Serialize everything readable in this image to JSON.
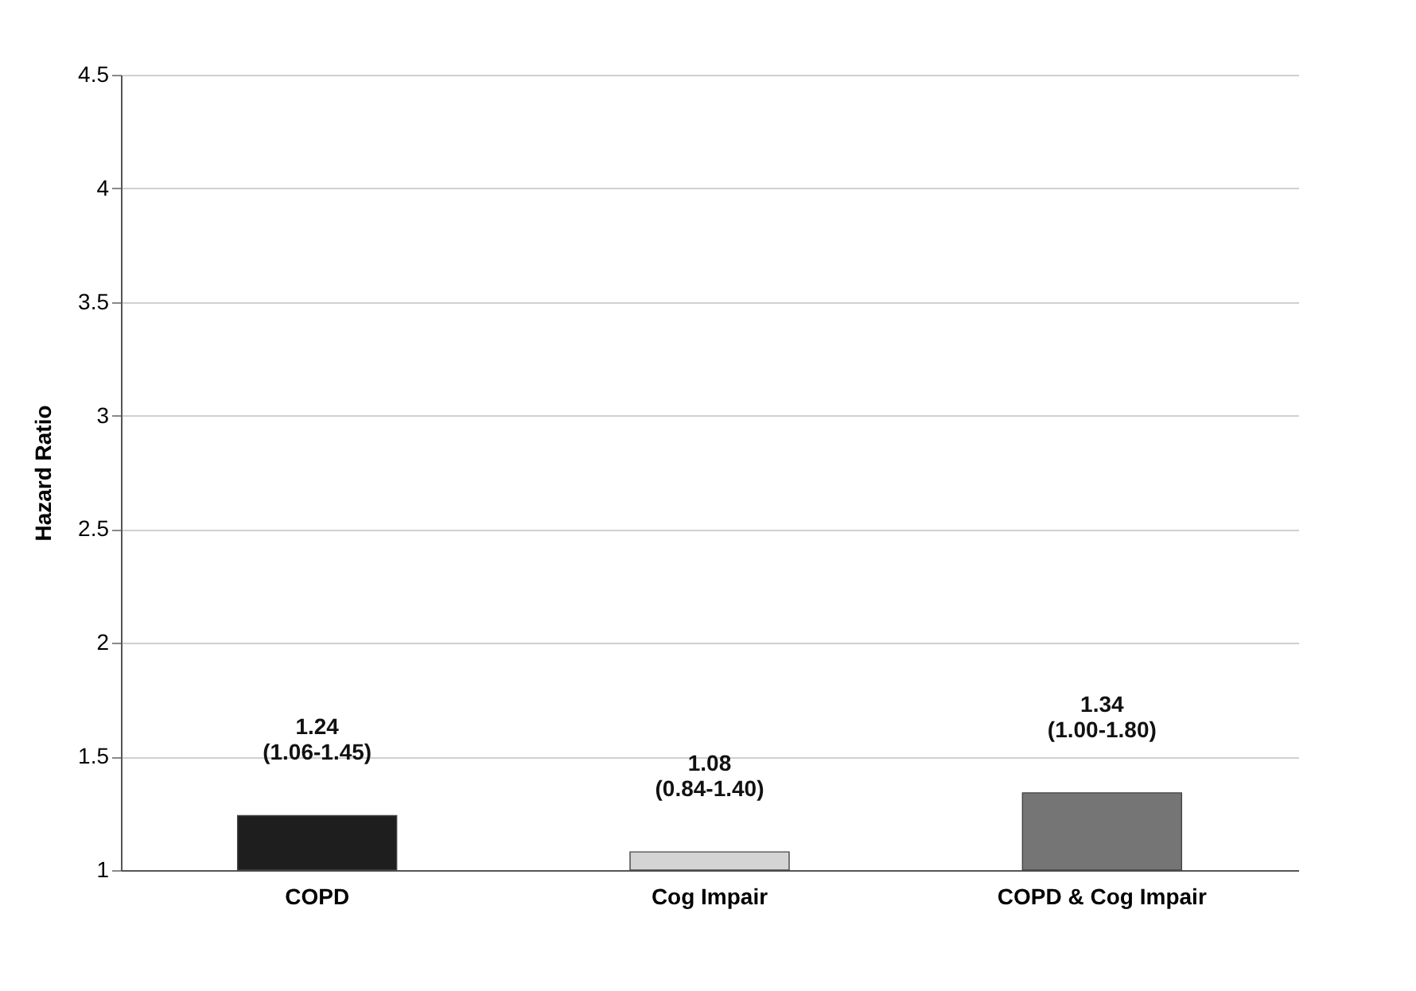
{
  "chart_data": {
    "type": "bar",
    "ylabel": "Hazard Ratio",
    "categories": [
      "COPD",
      "Cog Impair",
      "COPD & Cog Impair"
    ],
    "values": [
      1.24,
      1.08,
      1.34
    ],
    "colors": [
      "#1e1e1e",
      "#d4d4d4",
      "#757575"
    ],
    "value_labels": [
      "1.24\n(1.06-1.45)",
      "1.08\n(0.84-1.40)",
      "1.34\n(1.00-1.80)"
    ],
    "ylim": [
      1,
      4.5
    ],
    "yticks": [
      1,
      1.5,
      2,
      2.5,
      3,
      3.5,
      4,
      4.5
    ],
    "grid": "y"
  }
}
